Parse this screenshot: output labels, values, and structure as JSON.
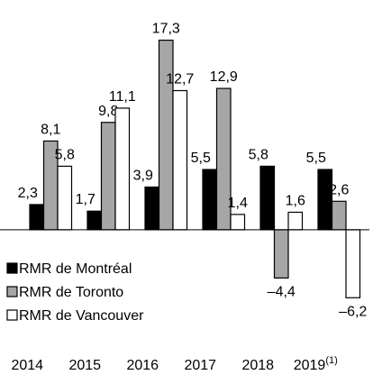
{
  "chart_data": {
    "type": "bar",
    "categories": [
      "2014",
      "2015",
      "2016",
      "2017",
      "2018",
      "2019"
    ],
    "category_note": "(1)",
    "series": [
      {
        "name": "RMR de Montréal",
        "color": "#000000",
        "values": [
          2.3,
          1.7,
          3.9,
          5.5,
          5.8,
          5.5
        ],
        "value_labels": [
          "2,3",
          "1,7",
          "3,9",
          "5,5",
          "5,8",
          "5,5"
        ]
      },
      {
        "name": "RMR de Toronto",
        "color": "#a6a6a6",
        "values": [
          8.1,
          9.8,
          17.3,
          12.9,
          -4.4,
          2.6
        ],
        "value_labels": [
          "8,1",
          "9,8",
          "17,3",
          "12,9",
          "–4,4",
          "2,6"
        ]
      },
      {
        "name": "RMR de Vancouver",
        "color": "#ffffff",
        "values": [
          5.8,
          11.1,
          12.7,
          1.4,
          1.6,
          -6.2
        ],
        "value_labels": [
          "5,8",
          "11,1",
          "12,7",
          "1,4",
          "1,6",
          "–6,2"
        ]
      }
    ],
    "ylim": [
      -7,
      18.5
    ],
    "legend": "left"
  }
}
